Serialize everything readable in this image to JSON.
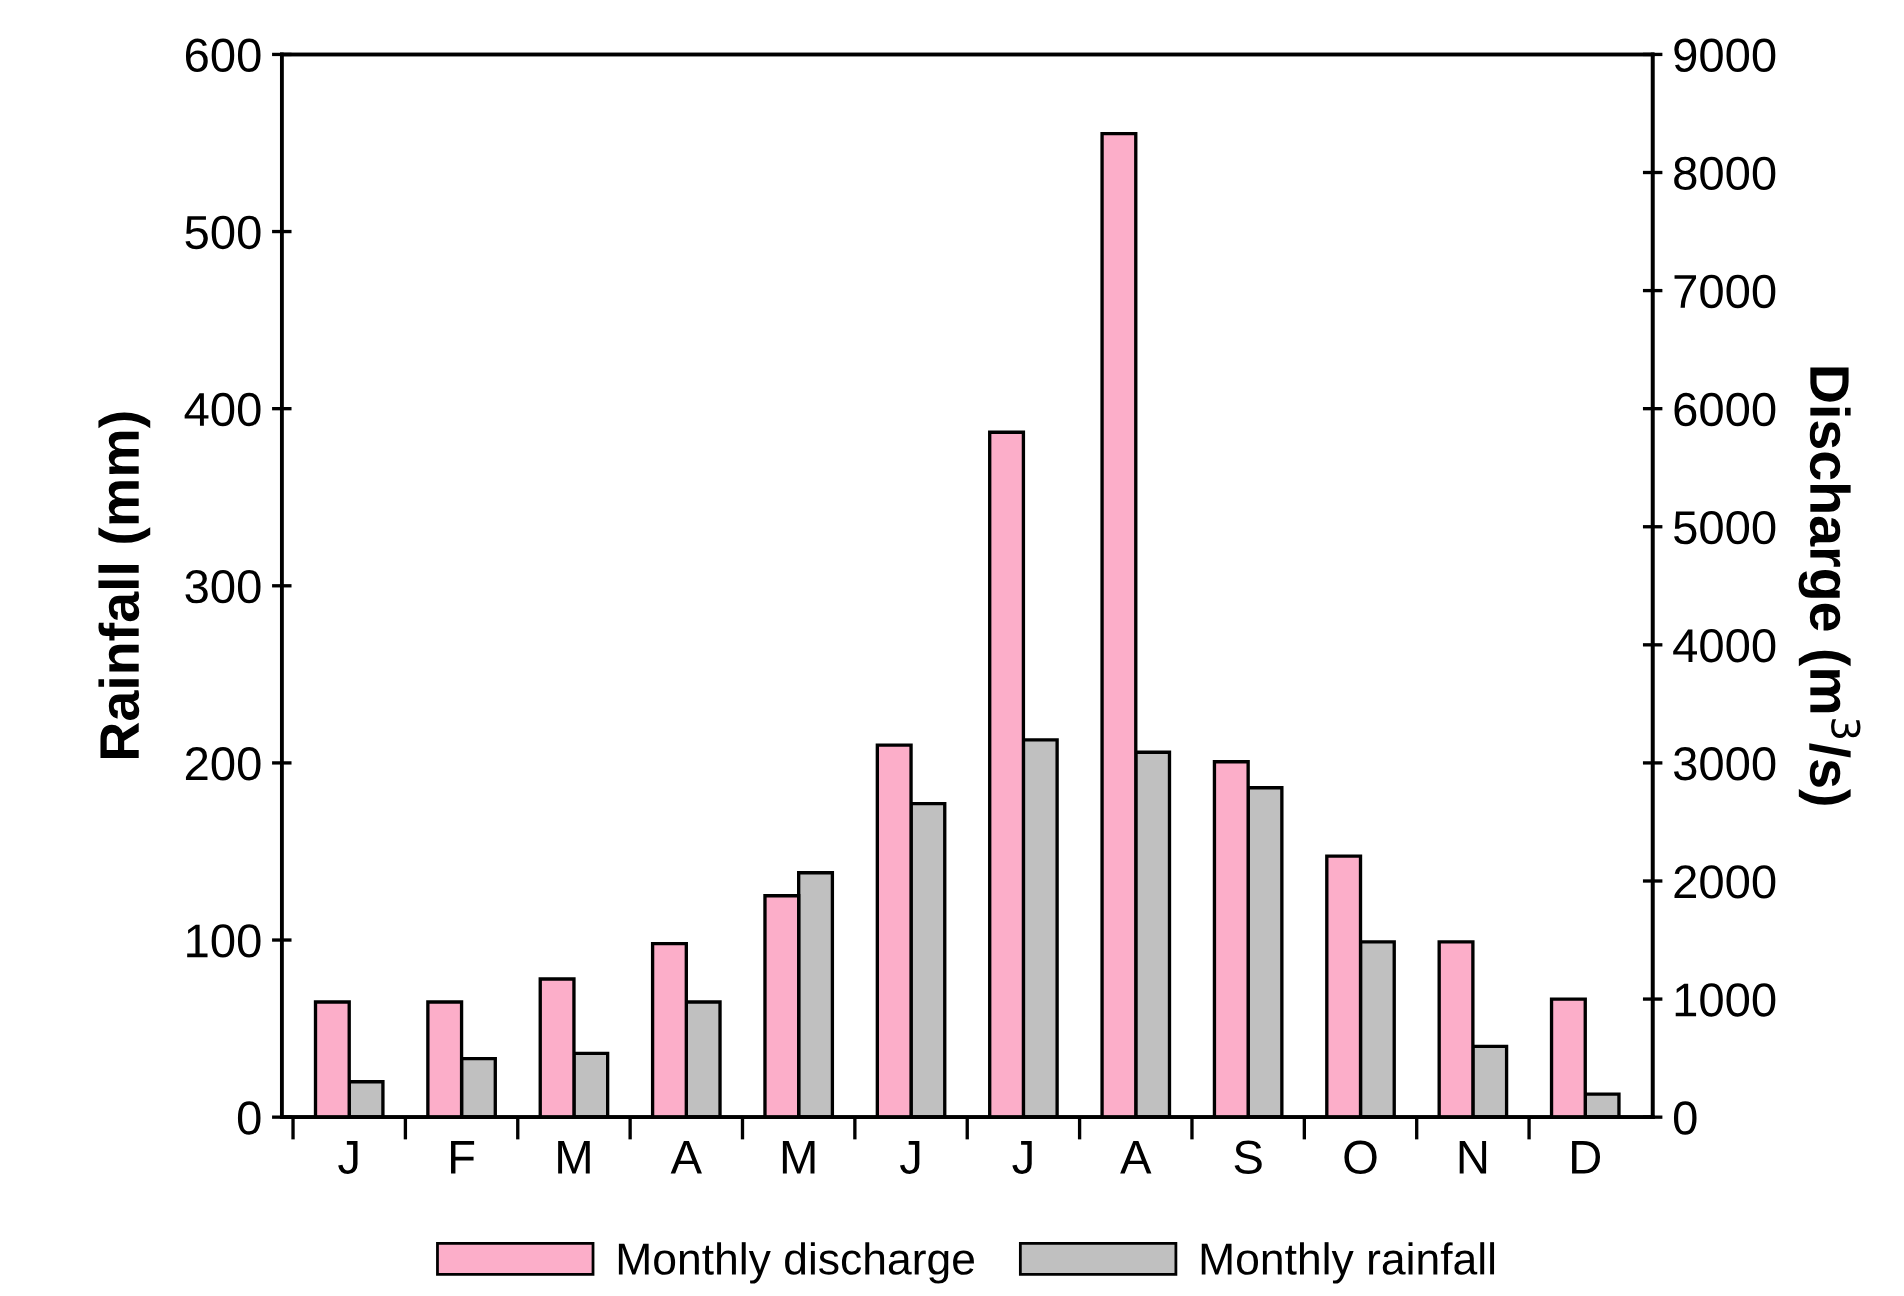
{
  "chart_data": {
    "type": "bar",
    "ylabel": "Rainfall (mm)",
    "y2label": "Discharge (m$^{3}$/s)",
    "categories": [
      "J",
      "F",
      "M",
      "A",
      "M",
      "J",
      "J",
      "A",
      "S",
      "O",
      "N",
      "D"
    ],
    "series": [
      {
        "name": "Monthly discharge",
        "color": "#fcaec9",
        "axis": "y2",
        "values": [
          975,
          975,
          1170,
          1470,
          1875,
          3150,
          5800,
          8330,
          3010,
          2210,
          1485,
          1000
        ]
      },
      {
        "name": "Monthly rainfall",
        "color": "#c0c0c0",
        "axis": "y",
        "values": [
          20,
          33,
          36,
          65,
          138,
          177,
          213,
          206,
          186,
          99,
          40,
          13
        ]
      }
    ],
    "ylim": [
      0,
      600
    ],
    "yticks": [
      0,
      100,
      200,
      300,
      400,
      500,
      600
    ],
    "y2lim": [
      0,
      9000
    ],
    "y2ticks": [
      0,
      1000,
      2000,
      3000,
      4000,
      5000,
      6000,
      7000,
      8000,
      9000
    ],
    "grid": false,
    "legend": "bottom"
  }
}
